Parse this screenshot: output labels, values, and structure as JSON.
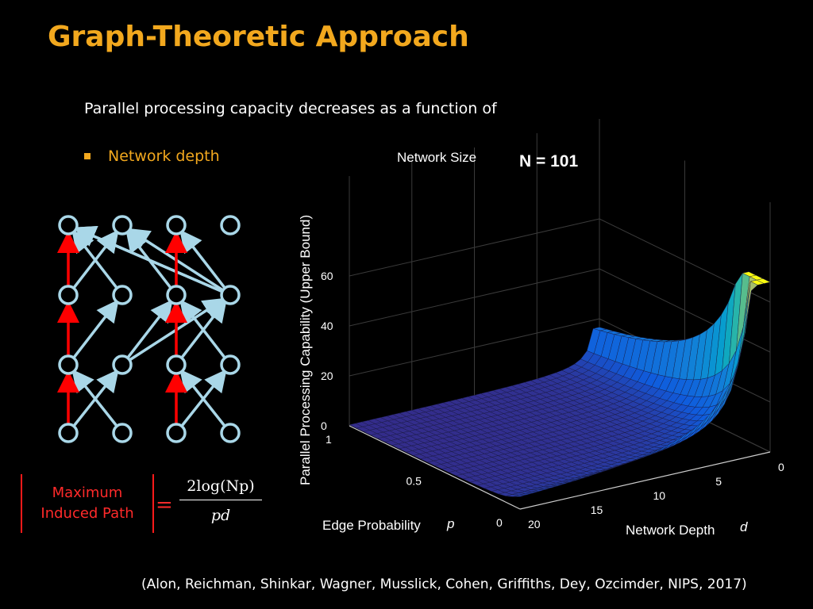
{
  "slide": {
    "title": "Graph-Theoretic Approach",
    "intro": "Parallel processing capacity decreases as a function of",
    "bullet": "Network depth",
    "citation": "(Alon, Reichman, Shinkar, Wagner, Musslick, Cohen, Griffiths, Dey, Ozcimder, NIPS, 2017)"
  },
  "formula": {
    "lhs_line1": "Maximum",
    "lhs_line2": "Induced Path",
    "equals": "=",
    "numerator": "2log(Np)",
    "denominator": "pd"
  },
  "colors": {
    "title": "#f2a81e",
    "bullet": "#f2a81e",
    "node": "#a9d7e8",
    "induced_path": "#ff0000",
    "formula": "#ff2a2a"
  },
  "network": {
    "layers": 4,
    "nodes_per_layer": 4,
    "induced_path_columns": [
      0,
      2
    ]
  },
  "chart_data": {
    "type": "surface",
    "network_size_label": "Network Size",
    "network_size_value": "N = 101",
    "zlabel": "Parallel Processing Capability (Upper Bound)",
    "z_ticks": [
      "0",
      "20",
      "40",
      "60"
    ],
    "p_label": "Edge Probability",
    "p_symbol": "p",
    "p_ticks": [
      "1",
      "0.5",
      "0"
    ],
    "d_label": "Network Depth",
    "d_symbol": "d",
    "d_ticks": [
      "0",
      "5",
      "10",
      "15",
      "20"
    ],
    "zlim": [
      0,
      70
    ],
    "p_range": [
      0,
      1
    ],
    "d_range": [
      0,
      20
    ],
    "colormap": "parula"
  }
}
